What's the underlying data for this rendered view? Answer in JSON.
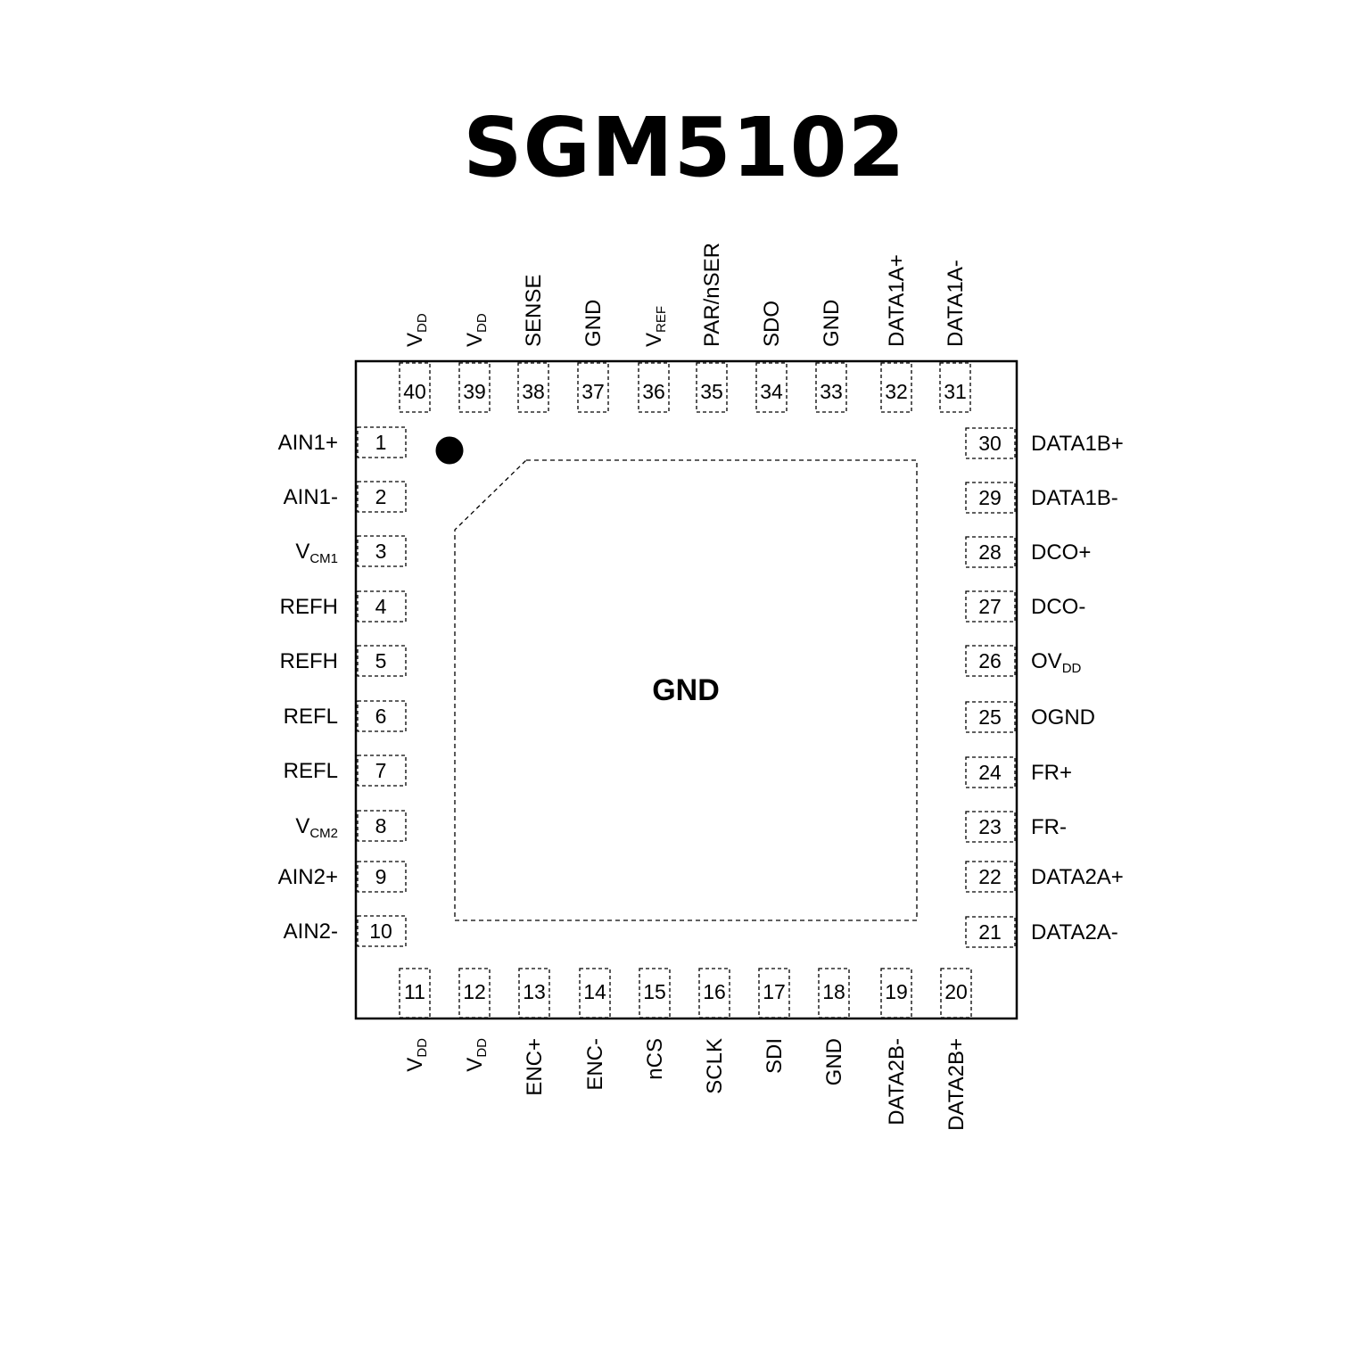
{
  "title": "SGM5102",
  "exposed_pad_label": "GND",
  "pins": {
    "left": [
      {
        "num": "1",
        "name": "AIN1+",
        "sub": ""
      },
      {
        "num": "2",
        "name": "AIN1-",
        "sub": ""
      },
      {
        "num": "3",
        "name": "V",
        "sub": "CM1"
      },
      {
        "num": "4",
        "name": "REFH",
        "sub": ""
      },
      {
        "num": "5",
        "name": "REFH",
        "sub": ""
      },
      {
        "num": "6",
        "name": "REFL",
        "sub": ""
      },
      {
        "num": "7",
        "name": "REFL",
        "sub": ""
      },
      {
        "num": "8",
        "name": "V",
        "sub": "CM2"
      },
      {
        "num": "9",
        "name": "AIN2+",
        "sub": ""
      },
      {
        "num": "10",
        "name": "AIN2-",
        "sub": ""
      }
    ],
    "bottom": [
      {
        "num": "11",
        "name": "V",
        "sub": "DD"
      },
      {
        "num": "12",
        "name": "V",
        "sub": "DD"
      },
      {
        "num": "13",
        "name": "ENC+",
        "sub": ""
      },
      {
        "num": "14",
        "name": "ENC-",
        "sub": ""
      },
      {
        "num": "15",
        "name": "nCS",
        "sub": ""
      },
      {
        "num": "16",
        "name": "SCLK",
        "sub": ""
      },
      {
        "num": "17",
        "name": "SDI",
        "sub": ""
      },
      {
        "num": "18",
        "name": "GND",
        "sub": ""
      },
      {
        "num": "19",
        "name": "DATA2B-",
        "sub": ""
      },
      {
        "num": "20",
        "name": "DATA2B+",
        "sub": ""
      }
    ],
    "right": [
      {
        "num": "21",
        "name": "DATA2A-",
        "sub": ""
      },
      {
        "num": "22",
        "name": "DATA2A+",
        "sub": ""
      },
      {
        "num": "23",
        "name": "FR-",
        "sub": ""
      },
      {
        "num": "24",
        "name": "FR+",
        "sub": ""
      },
      {
        "num": "25",
        "name": "OGND",
        "sub": ""
      },
      {
        "num": "26",
        "name": "OV",
        "sub": "DD"
      },
      {
        "num": "27",
        "name": "DCO-",
        "sub": ""
      },
      {
        "num": "28",
        "name": "DCO+",
        "sub": ""
      },
      {
        "num": "29",
        "name": "DATA1B-",
        "sub": ""
      },
      {
        "num": "30",
        "name": "DATA1B+",
        "sub": ""
      }
    ],
    "top": [
      {
        "num": "31",
        "name": "DATA1A-",
        "sub": ""
      },
      {
        "num": "32",
        "name": "DATA1A+",
        "sub": ""
      },
      {
        "num": "33",
        "name": "GND",
        "sub": ""
      },
      {
        "num": "34",
        "name": "SDO",
        "sub": ""
      },
      {
        "num": "35",
        "name": "PAR/nSER",
        "sub": ""
      },
      {
        "num": "36",
        "name": "V",
        "sub": "REF"
      },
      {
        "num": "37",
        "name": "GND",
        "sub": ""
      },
      {
        "num": "38",
        "name": "SENSE",
        "sub": ""
      },
      {
        "num": "39",
        "name": "V",
        "sub": "DD"
      },
      {
        "num": "40",
        "name": "V",
        "sub": "DD"
      }
    ]
  }
}
